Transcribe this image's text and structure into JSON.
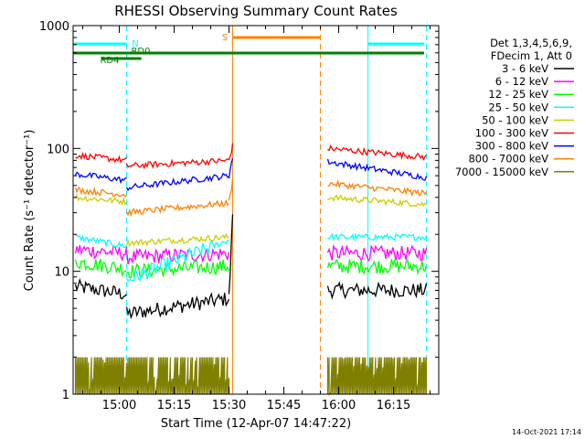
{
  "chart_data": {
    "type": "line",
    "title": "RHESSI Observing Summary Count Rates",
    "xlabel": "Start Time (12-Apr-07 14:47:22)",
    "ylabel": "Count Rate (s⁻¹ detector⁻¹)",
    "ylim": [
      1,
      1000
    ],
    "yscale": "log",
    "xlim": [
      "14:47:22",
      "16:27:22"
    ],
    "x_ticks": [
      "15:00",
      "15:15",
      "15:30",
      "15:45",
      "16:00",
      "16:15"
    ],
    "y_ticks": [
      "1",
      "10",
      "100",
      "1000"
    ],
    "legend_header": [
      "Det 1,3,4,5,6,9,",
      "FDecim 1, Att 0"
    ],
    "legend_position": "right",
    "footer": "14-Oct-2021 17:14",
    "series": [
      {
        "name": "3 - 6 keV",
        "color": "#000000",
        "segments": [
          {
            "x": [
              "14:48",
              "15:02"
            ],
            "y": [
              7.5,
              6.5
            ]
          },
          {
            "x": [
              "15:02",
              "15:30"
            ],
            "y": [
              4.5,
              6
            ]
          },
          {
            "x": [
              "15:30",
              "15:31"
            ],
            "y": [
              6,
              30
            ]
          },
          {
            "x": [
              "15:57",
              "16:24"
            ],
            "y": [
              7,
              7
            ]
          }
        ]
      },
      {
        "name": "6 - 12 keV",
        "color": "#ff00ff",
        "segments": [
          {
            "x": [
              "14:48",
              "15:02"
            ],
            "y": [
              15,
              14
            ]
          },
          {
            "x": [
              "15:02",
              "15:30"
            ],
            "y": [
              13,
              14
            ]
          },
          {
            "x": [
              "15:57",
              "16:24"
            ],
            "y": [
              14,
              14
            ]
          }
        ]
      },
      {
        "name": "12 - 25 keV",
        "color": "#00ff00",
        "segments": [
          {
            "x": [
              "14:48",
              "15:02"
            ],
            "y": [
              12,
              10.5
            ]
          },
          {
            "x": [
              "15:02",
              "15:30"
            ],
            "y": [
              10,
              11
            ]
          },
          {
            "x": [
              "15:57",
              "16:24"
            ],
            "y": [
              11,
              11
            ]
          }
        ]
      },
      {
        "name": "25 - 50 keV",
        "color": "#00ffff",
        "segments": [
          {
            "x": [
              "14:48",
              "15:02"
            ],
            "y": [
              19,
              16
            ]
          },
          {
            "x": [
              "15:02",
              "15:30"
            ],
            "y": [
              8.5,
              18
            ]
          },
          {
            "x": [
              "15:57",
              "16:24"
            ],
            "y": [
              19,
              19
            ]
          }
        ]
      },
      {
        "name": "50 - 100 keV",
        "color": "#cccc00",
        "segments": [
          {
            "x": [
              "14:48",
              "15:02"
            ],
            "y": [
              40,
              37
            ]
          },
          {
            "x": [
              "15:02",
              "15:30"
            ],
            "y": [
              17,
              19
            ]
          },
          {
            "x": [
              "15:57",
              "16:24"
            ],
            "y": [
              40,
              35
            ]
          }
        ]
      },
      {
        "name": "100 - 300 keV",
        "color": "#ff0000",
        "segments": [
          {
            "x": [
              "14:48",
              "15:02"
            ],
            "y": [
              88,
              80
            ]
          },
          {
            "x": [
              "15:02",
              "15:30"
            ],
            "y": [
              72,
              80
            ]
          },
          {
            "x": [
              "15:30",
              "15:31"
            ],
            "y": [
              80,
              105
            ]
          },
          {
            "x": [
              "15:57",
              "16:24"
            ],
            "y": [
              100,
              85
            ]
          }
        ]
      },
      {
        "name": "300 - 800 keV",
        "color": "#0000ff",
        "segments": [
          {
            "x": [
              "14:48",
              "15:02"
            ],
            "y": [
              62,
              55
            ]
          },
          {
            "x": [
              "15:02",
              "15:30"
            ],
            "y": [
              48,
              60
            ]
          },
          {
            "x": [
              "15:30",
              "15:31"
            ],
            "y": [
              60,
              85
            ]
          },
          {
            "x": [
              "15:57",
              "16:24"
            ],
            "y": [
              78,
              58
            ]
          }
        ]
      },
      {
        "name": "800 - 7000 keV",
        "color": "#ff8000",
        "segments": [
          {
            "x": [
              "14:48",
              "15:02"
            ],
            "y": [
              46,
              42
            ]
          },
          {
            "x": [
              "15:02",
              "15:30"
            ],
            "y": [
              30,
              36
            ]
          },
          {
            "x": [
              "15:30",
              "15:31"
            ],
            "y": [
              36,
              55
            ]
          },
          {
            "x": [
              "15:57",
              "16:24"
            ],
            "y": [
              52,
              43
            ]
          }
        ]
      },
      {
        "name": "7000 - 15000 keV",
        "color": "#808000",
        "segments": [
          {
            "x": [
              "14:48",
              "15:02"
            ],
            "y": [
              1.4,
              1.4
            ]
          },
          {
            "x": [
              "15:02",
              "15:30"
            ],
            "y": [
              1.3,
              1.3
            ]
          },
          {
            "x": [
              "15:57",
              "16:24"
            ],
            "y": [
              1.4,
              1.4
            ]
          }
        ]
      }
    ],
    "flag_bars": [
      {
        "label": "N",
        "color": "#00ffff",
        "x": [
          "14:47",
          "15:02"
        ]
      },
      {
        "label": "",
        "color": "#00ffff",
        "x": [
          "16:08",
          "16:24"
        ]
      },
      {
        "label": "S",
        "color": "#ff8000",
        "x": [
          "15:31",
          "15:55"
        ]
      },
      {
        "label": "RD4",
        "color": "#008000",
        "x": [
          "14:55",
          "15:06"
        ]
      },
      {
        "label": "RD0",
        "color": "#008000",
        "x": [
          "14:47",
          "16:27"
        ]
      }
    ],
    "vertical_markers": [
      {
        "x": "15:02",
        "color": "#00ffff",
        "style": "dashed"
      },
      {
        "x": "16:08",
        "color": "#00ffff",
        "style": "solid"
      },
      {
        "x": "16:24",
        "color": "#00ffff",
        "style": "dashed"
      },
      {
        "x": "15:31",
        "color": "#ff8000",
        "style": "solid"
      },
      {
        "x": "15:55",
        "color": "#ff8000",
        "style": "dashed"
      }
    ]
  }
}
